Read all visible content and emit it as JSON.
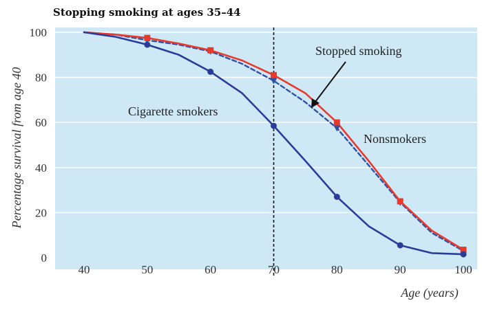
{
  "chart_data": {
    "type": "line",
    "title": "Stopping smoking at ages 35–44",
    "xlabel": "Age (years)",
    "ylabel": "Percentage survival from age 40",
    "xlim": [
      35,
      102
    ],
    "ylim": [
      0,
      100
    ],
    "xticks": [
      40,
      50,
      60,
      70,
      80,
      90,
      100
    ],
    "yticks": [
      0,
      20,
      40,
      60,
      80,
      100
    ],
    "grid": "horizontal",
    "reference_line_x": 70,
    "annotations": {
      "stopped_label": "Stopped smoking",
      "cigarette_label": "Cigarette smokers",
      "nonsmokers_label": "Nonsmokers"
    },
    "colors": {
      "background": "#cfe8f6",
      "gridline": "#ffffff",
      "nonsmokers": "#e8392a",
      "stopped": "#2f4fa8",
      "smokers": "#2a3c9a"
    },
    "series": [
      {
        "key": "nonsmokers",
        "x": [
          40,
          45,
          50,
          55,
          60,
          65,
          70,
          75,
          80,
          85,
          90,
          95,
          100
        ],
        "y": [
          100,
          99,
          97.5,
          95,
          92,
          87.5,
          81,
          73,
          60,
          43,
          25,
          12,
          3.5
        ],
        "markers_at": [
          50,
          60,
          70,
          80,
          90,
          100
        ],
        "style": "solid",
        "marker": "square"
      },
      {
        "key": "stopped",
        "x": [
          40,
          45,
          50,
          55,
          60,
          65,
          70,
          75,
          80,
          85,
          90,
          95,
          100
        ],
        "y": [
          100,
          99,
          96.5,
          94.5,
          91.5,
          86,
          78.5,
          69,
          57.5,
          41,
          24.5,
          11,
          3
        ],
        "markers_at": [
          50,
          60,
          70,
          80,
          90
        ],
        "style": "dashed",
        "marker": "triangle"
      },
      {
        "key": "smokers",
        "x": [
          40,
          45,
          50,
          55,
          60,
          65,
          70,
          75,
          80,
          85,
          90,
          95,
          100
        ],
        "y": [
          100,
          98,
          94.5,
          90,
          82.5,
          73,
          58.5,
          43,
          27,
          14,
          5.5,
          2,
          1.5
        ],
        "markers_at": [
          50,
          60,
          70,
          80,
          90,
          100
        ],
        "style": "solid",
        "marker": "circle"
      }
    ]
  }
}
